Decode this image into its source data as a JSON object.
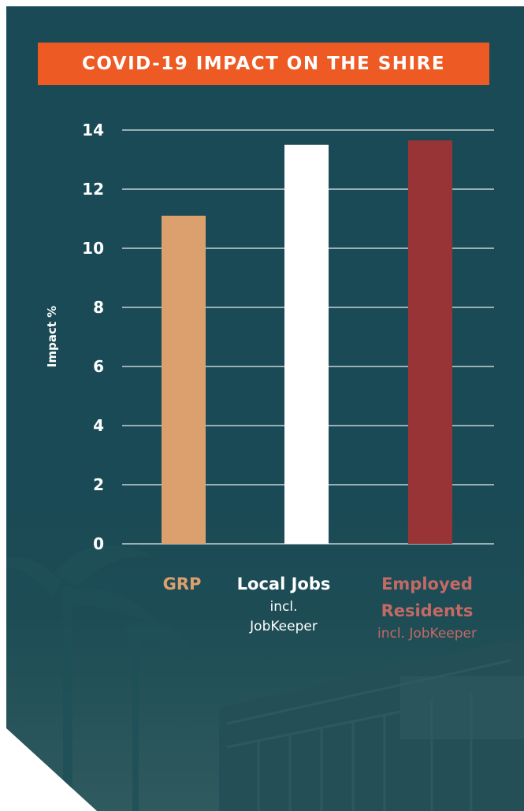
{
  "title": "COVID-19 IMPACT ON THE SHIRE",
  "colors": {
    "background": "#1a4a55",
    "title_bar": "#ee5a24",
    "grp": "#dca06e",
    "local_jobs": "#ffffff",
    "employed_residents": "#983436",
    "employed_label": "#c46a64"
  },
  "categories": [
    {
      "main": "GRP",
      "sub": ""
    },
    {
      "main": "Local Jobs",
      "sub": "incl. JobKeeper"
    },
    {
      "main": "Employed Residents",
      "sub": "incl. JobKeeper"
    }
  ],
  "chart_data": {
    "type": "bar",
    "title": "COVID-19 IMPACT ON THE SHIRE",
    "xlabel": "",
    "ylabel": "Impact %",
    "categories": [
      "GRP",
      "Local Jobs incl. JobKeeper",
      "Employed Residents incl. JobKeeper"
    ],
    "values": [
      11.1,
      13.5,
      13.65
    ],
    "bar_colors": [
      "#dca06e",
      "#ffffff",
      "#983436"
    ],
    "ylim": [
      0,
      14
    ],
    "yticks": [
      0,
      2,
      4,
      6,
      8,
      10,
      12,
      14
    ],
    "grid": true,
    "legend": "none"
  }
}
